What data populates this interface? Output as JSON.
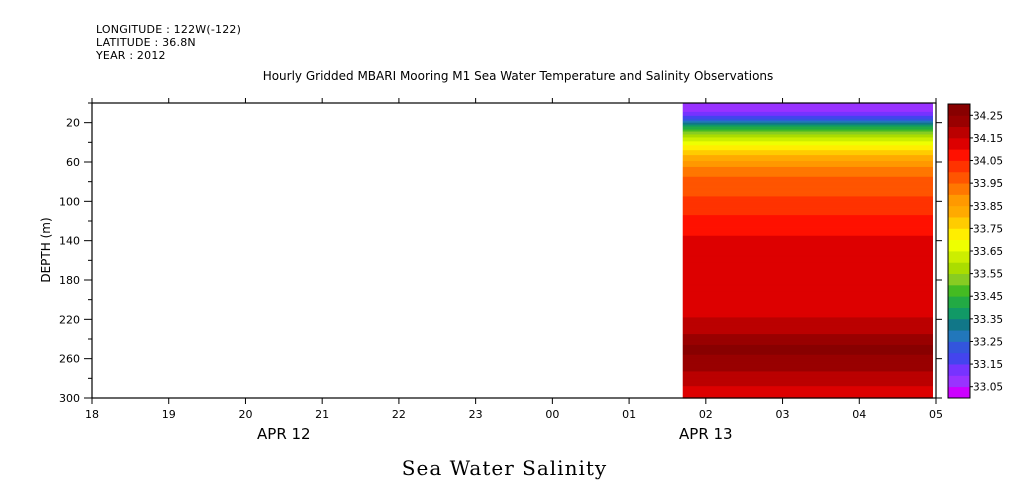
{
  "header": {
    "longitude": "LONGITUDE : 122W(-122)",
    "latitude": "LATITUDE : 36.8N",
    "year": "YEAR : 2012"
  },
  "plot_title": "Sea Water Salinity",
  "chart_data": {
    "type": "heatmap",
    "title": "Hourly Gridded MBARI Mooring M1 Sea Water Temperature and Salinity Observations",
    "xlabel": "",
    "ylabel": "DEPTH (m)",
    "x_ticks": [
      "18",
      "19",
      "20",
      "21",
      "22",
      "23",
      "00",
      "01",
      "02",
      "03",
      "04",
      "05"
    ],
    "x_date_labels": [
      {
        "label": "APR 12",
        "at_hour": 20.5
      },
      {
        "label": "APR 13",
        "at_hour": 26
      }
    ],
    "xlim_hours": [
      18,
      29
    ],
    "data_x_range_hours": [
      25.7,
      29
    ],
    "ylim": [
      0,
      300
    ],
    "y_inverted": true,
    "y_ticks": [
      20,
      60,
      100,
      140,
      180,
      220,
      260,
      300
    ],
    "colorbar": {
      "labels": [
        "34.25",
        "34.15",
        "34.05",
        "33.95",
        "33.85",
        "33.75",
        "33.65",
        "33.55",
        "33.45",
        "33.35",
        "33.25",
        "33.15",
        "33.05"
      ],
      "levels": [
        33.0,
        33.05,
        33.1,
        33.15,
        33.2,
        33.25,
        33.3,
        33.35,
        33.4,
        33.45,
        33.5,
        33.55,
        33.6,
        33.65,
        33.7,
        33.75,
        33.8,
        33.85,
        33.9,
        33.95,
        34.0,
        34.05,
        34.1,
        34.15,
        34.2,
        34.25,
        34.3
      ],
      "colors": [
        "#cc00ff",
        "#9933ff",
        "#7733ff",
        "#4444ee",
        "#3355dd",
        "#2277bb",
        "#117788",
        "#119966",
        "#22aa44",
        "#44bb22",
        "#88cc22",
        "#aadd00",
        "#ccee00",
        "#eeff00",
        "#ffee00",
        "#ffcc00",
        "#ffaa00",
        "#ff9900",
        "#ff7700",
        "#ff5500",
        "#ff3300",
        "#ff1100",
        "#dd0000",
        "#bb0000",
        "#990000",
        "#880000"
      ]
    },
    "depth_profile": [
      {
        "depth": 5,
        "value": 33.05
      },
      {
        "depth": 15,
        "value": 33.18
      },
      {
        "depth": 25,
        "value": 33.42
      },
      {
        "depth": 35,
        "value": 33.6
      },
      {
        "depth": 45,
        "value": 33.72
      },
      {
        "depth": 55,
        "value": 33.82
      },
      {
        "depth": 65,
        "value": 33.9
      },
      {
        "depth": 75,
        "value": 33.95
      },
      {
        "depth": 90,
        "value": 33.99
      },
      {
        "depth": 105,
        "value": 34.02
      },
      {
        "depth": 120,
        "value": 34.07
      },
      {
        "depth": 135,
        "value": 34.1
      },
      {
        "depth": 150,
        "value": 34.14
      },
      {
        "depth": 165,
        "value": 34.1
      },
      {
        "depth": 180,
        "value": 34.11
      },
      {
        "depth": 195,
        "value": 34.12
      },
      {
        "depth": 210,
        "value": 34.13
      },
      {
        "depth": 222,
        "value": 34.16
      },
      {
        "depth": 235,
        "value": 34.2
      },
      {
        "depth": 250,
        "value": 34.27
      },
      {
        "depth": 265,
        "value": 34.22
      },
      {
        "depth": 280,
        "value": 34.18
      },
      {
        "depth": 295,
        "value": 34.12
      }
    ]
  }
}
